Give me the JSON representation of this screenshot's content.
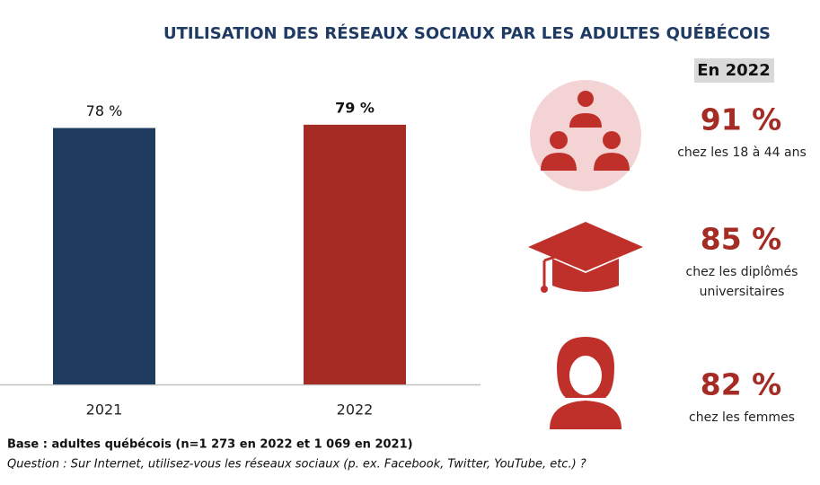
{
  "chart_data": {
    "type": "bar",
    "title": "UTILISATION DES RÉSEAUX SOCIAUX PAR LES ADULTES QUÉBÉCOIS",
    "categories": [
      "2021",
      "2022"
    ],
    "values": [
      78,
      79
    ],
    "value_labels": [
      "78 %",
      "79 %"
    ],
    "colors": [
      "#1f3b5f",
      "#a52b25"
    ],
    "ylim": [
      0,
      100
    ]
  },
  "highlights": {
    "title": "En 2022",
    "items": [
      {
        "label": "91 %",
        "caption": [
          "chez les 18 à 44 ans"
        ]
      },
      {
        "label": "85 %",
        "caption": [
          "chez les diplômés",
          "universitaires"
        ]
      },
      {
        "label": "82 %",
        "caption": [
          "chez les femmes"
        ]
      }
    ]
  },
  "footnotes": {
    "base": "Base : adultes québécois (n=1 273 en 2022 et 1 069 en 2021)",
    "question": "Question : Sur Internet, utilisez-vous les réseaux sociaux (p. ex. Facebook, Twitter, YouTube, etc.) ?"
  }
}
